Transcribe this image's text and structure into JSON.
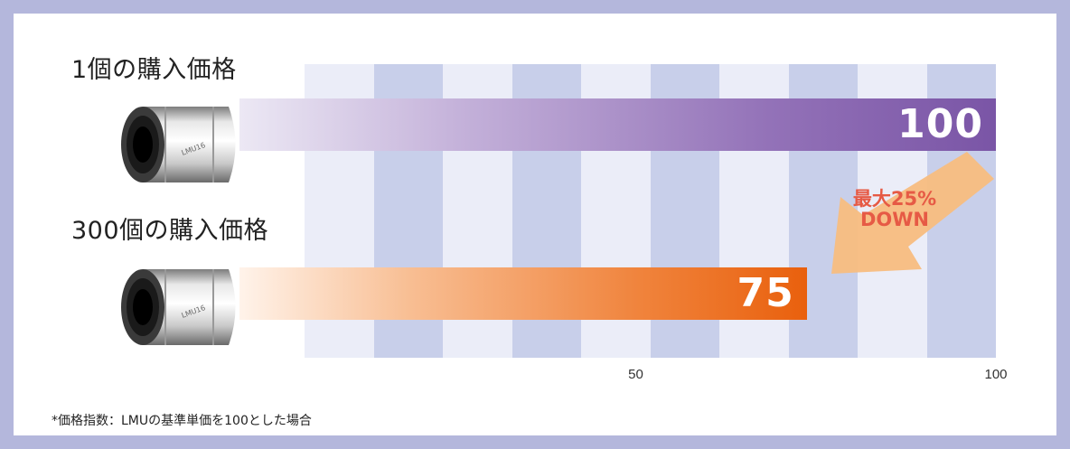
{
  "chart_data": {
    "type": "bar",
    "orientation": "horizontal",
    "categories": [
      "1個の購入価格",
      "300個の購入価格"
    ],
    "values": [
      100,
      75
    ],
    "xlim": [
      0,
      100
    ],
    "x_ticks": [
      "50",
      "100"
    ],
    "bar_colors": [
      "#7a55a6",
      "#e9600d"
    ],
    "annotation": {
      "line1": "最大25%",
      "line2": "DOWN"
    },
    "product_label": "LMU16",
    "footnote": "*価格指数：LMUの基準単価を100とした場合"
  },
  "colors": {
    "frame": "#b4b7dc",
    "stripe_light": "#ebedf8",
    "stripe_dark": "#c8cfea",
    "arrow": "#f8bd7f",
    "annotation_text": "#e65a45"
  }
}
